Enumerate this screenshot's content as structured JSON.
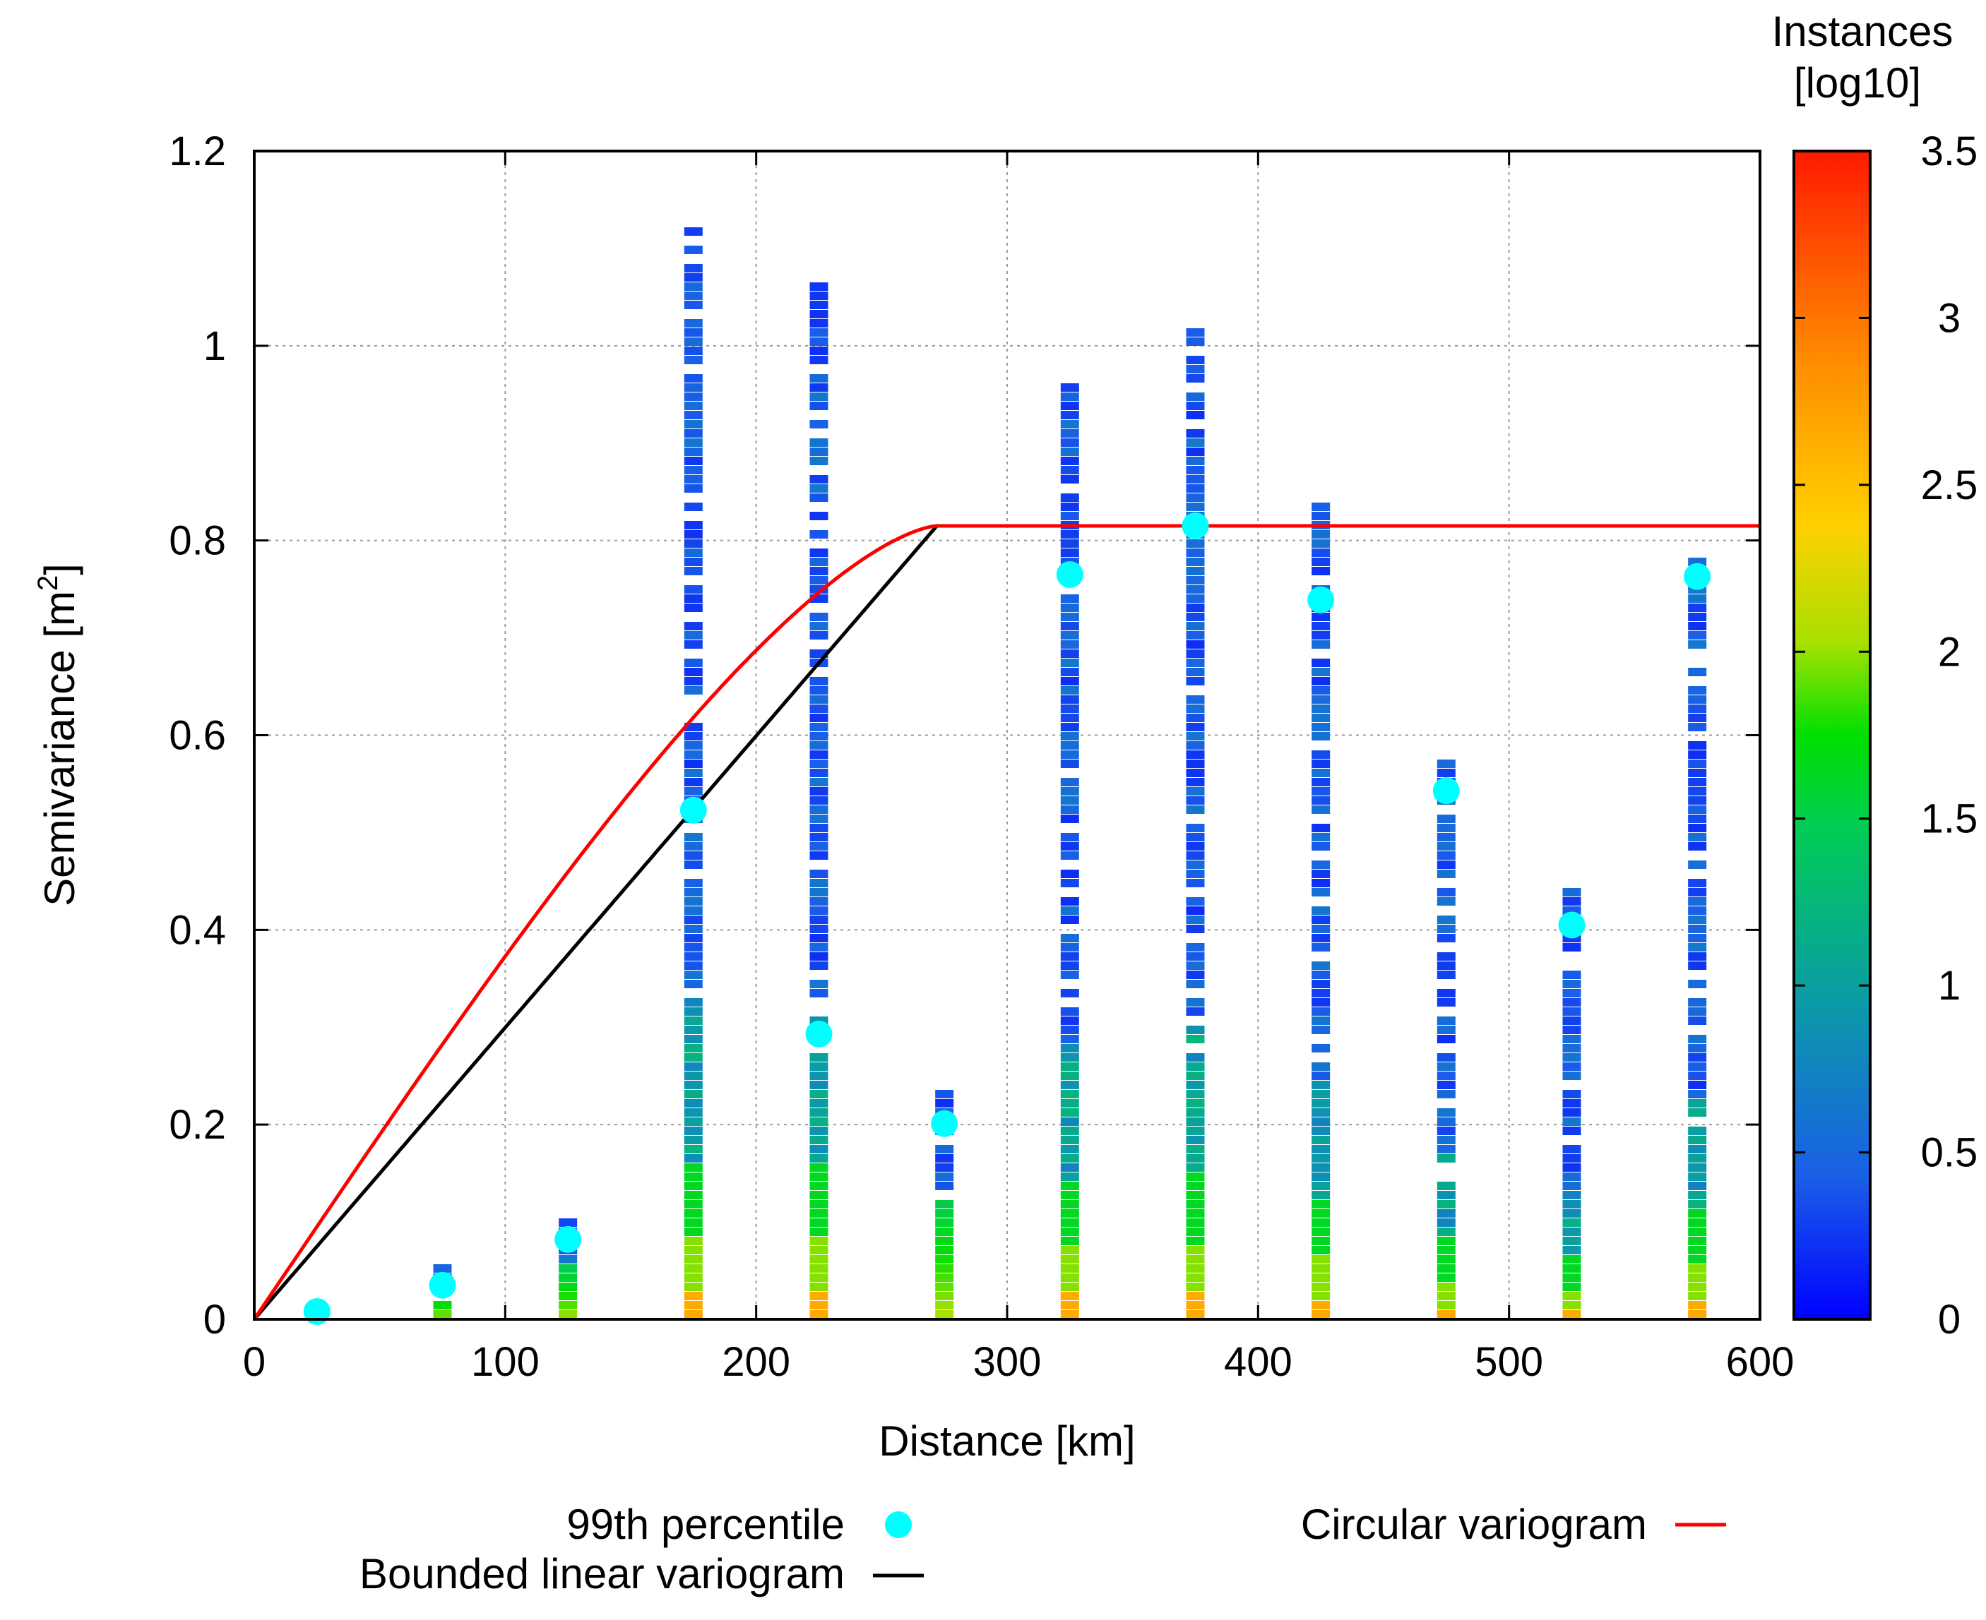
{
  "chart_data": {
    "type": "scatter",
    "xlabel": "Distance [km]",
    "ylabel": "Semivariance [m",
    "ylabel_sup": "2",
    "ylabel_end": "]",
    "xlim": [
      0,
      600
    ],
    "ylim": [
      0,
      1.2
    ],
    "xticks": [
      0,
      100,
      200,
      300,
      400,
      500,
      600
    ],
    "xtick_labels": [
      "0",
      "100",
      "200",
      "300",
      "400",
      "500",
      "600"
    ],
    "yticks": [
      0,
      0.2,
      0.4,
      0.6,
      0.8,
      1.0,
      1.2
    ],
    "ytick_labels": [
      "0",
      "0.2",
      "0.4",
      "0.6",
      "0.8",
      "1",
      "1.2"
    ],
    "grid": true,
    "colorbar": {
      "title_line1": "Instances",
      "title_line2": "[log10]",
      "range": [
        0,
        3.5
      ],
      "ticks": [
        0,
        0.5,
        1,
        1.5,
        2,
        2.5,
        3,
        3.5
      ],
      "tick_labels": [
        "0",
        "0.5",
        "1",
        "1.5",
        "2",
        "2.5",
        "3",
        "3.5"
      ],
      "colormap": [
        "#0000ff",
        "#1a5ee8",
        "#0b9aa8",
        "#00cc55",
        "#00e000",
        "#a8e000",
        "#ffd000",
        "#ff8c00",
        "#ff1a00"
      ]
    },
    "bins": [
      {
        "x": 25,
        "ymax": 0.02
      },
      {
        "x": 75,
        "ymax": 0.06
      },
      {
        "x": 125,
        "ymax": 0.105
      },
      {
        "x": 175,
        "ymax": 1.125
      },
      {
        "x": 225,
        "ymax": 1.07
      },
      {
        "x": 275,
        "ymax": 0.235
      },
      {
        "x": 325,
        "ymax": 0.965
      },
      {
        "x": 375,
        "ymax": 1.025
      },
      {
        "x": 425,
        "ymax": 0.845
      },
      {
        "x": 475,
        "ymax": 0.575
      },
      {
        "x": 525,
        "ymax": 0.45
      },
      {
        "x": 575,
        "ymax": 0.785
      }
    ],
    "series": [
      {
        "name": "99th percentile",
        "type": "scatter",
        "color": "#00ffff",
        "x": [
          25,
          75,
          125,
          175,
          225,
          275,
          325,
          375,
          425,
          475,
          525,
          575
        ],
        "y": [
          0.008,
          0.035,
          0.082,
          0.523,
          0.293,
          0.201,
          0.765,
          0.815,
          0.739,
          0.543,
          0.405,
          0.763
        ]
      },
      {
        "name": "Circular variogram",
        "type": "line",
        "color": "#ff0000",
        "sill": 0.815,
        "range": 272
      },
      {
        "name": "Bounded linear variogram",
        "type": "line",
        "color": "#000000",
        "sill": 0.815,
        "range": 272
      }
    ],
    "legend": [
      "99th percentile",
      "Bounded linear variogram",
      "Circular variogram"
    ]
  }
}
